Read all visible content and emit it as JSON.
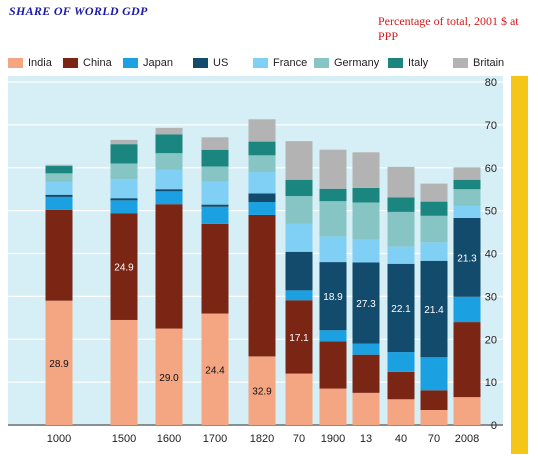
{
  "chart_data": {
    "type": "bar",
    "stacked": true,
    "title": "SHARE OF WORLD GDP",
    "subtitle": "Percentage of total, 2001 $ at PPP",
    "categories": [
      "1000",
      "1500",
      "1600",
      "1700",
      "1820",
      "70",
      "1900",
      "13",
      "40",
      "70",
      "2008"
    ],
    "series": [
      {
        "name": "India",
        "color": "#f4a582",
        "values": [
          29.0,
          24.5,
          22.5,
          26.0,
          16.0,
          12.0,
          8.5,
          7.5,
          6.0,
          3.5,
          6.5
        ]
      },
      {
        "name": "China",
        "color": "#7b2515",
        "values": [
          21.2,
          24.9,
          29.0,
          20.9,
          33.0,
          17.1,
          11.0,
          8.9,
          6.4,
          4.6,
          17.5
        ]
      },
      {
        "name": "Japan",
        "color": "#1ba1e2",
        "values": [
          3.0,
          3.0,
          3.0,
          4.0,
          3.0,
          2.3,
          2.6,
          2.6,
          4.6,
          7.7,
          5.9
        ]
      },
      {
        "name": "US",
        "color": "#134b6c",
        "values": [
          0.5,
          0.5,
          0.5,
          0.5,
          2.0,
          9.0,
          15.9,
          18.9,
          20.6,
          22.5,
          18.4
        ]
      },
      {
        "name": "France",
        "color": "#7fd0f4",
        "values": [
          3.0,
          4.4,
          4.5,
          5.4,
          5.0,
          6.5,
          6.0,
          5.3,
          4.0,
          4.3,
          2.8
        ]
      },
      {
        "name": "Germany",
        "color": "#86c5c4",
        "values": [
          2.0,
          3.7,
          3.9,
          3.5,
          3.9,
          6.5,
          8.2,
          8.7,
          8.1,
          6.2,
          3.9
        ]
      },
      {
        "name": "Italy",
        "color": "#1b857f",
        "values": [
          1.7,
          4.5,
          4.4,
          3.9,
          3.2,
          3.8,
          2.9,
          3.4,
          3.4,
          3.3,
          2.2
        ]
      },
      {
        "name": "Britain",
        "color": "#b3b3b3",
        "values": [
          0.3,
          1.0,
          1.5,
          2.9,
          5.2,
          9.0,
          9.1,
          8.3,
          7.1,
          4.2,
          2.9
        ]
      }
    ],
    "data_labels": [
      {
        "category": "1000",
        "series": "India",
        "text": "28.9"
      },
      {
        "category": "1500",
        "series": "China",
        "text": "24.9"
      },
      {
        "category": "1600",
        "series": "India",
        "text": "29.0"
      },
      {
        "category": "1700",
        "series": "India",
        "text": "24.4"
      },
      {
        "category": "1820",
        "series": "India",
        "text": "32.9"
      },
      {
        "category": "70",
        "index": 5,
        "series": "China",
        "text": "17.1"
      },
      {
        "category": "1900",
        "series": "US",
        "text": "18.9"
      },
      {
        "category": "13",
        "series": "US",
        "text": "27.3"
      },
      {
        "category": "40",
        "series": "US",
        "text": "22.1"
      },
      {
        "category": "70",
        "index": 9,
        "series": "US",
        "text": "21.4"
      },
      {
        "category": "2008",
        "series": "US",
        "text": "21.3"
      }
    ],
    "yaxis": {
      "min": 0,
      "max": 80,
      "ticks": [
        0,
        10,
        20,
        30,
        40,
        50,
        60,
        70,
        80
      ],
      "side": "right"
    },
    "grid": true,
    "legend_position": "top",
    "colors": {
      "background": "#d6eef6",
      "axis_band": "#f5c518",
      "grid": "#ffffff"
    }
  }
}
